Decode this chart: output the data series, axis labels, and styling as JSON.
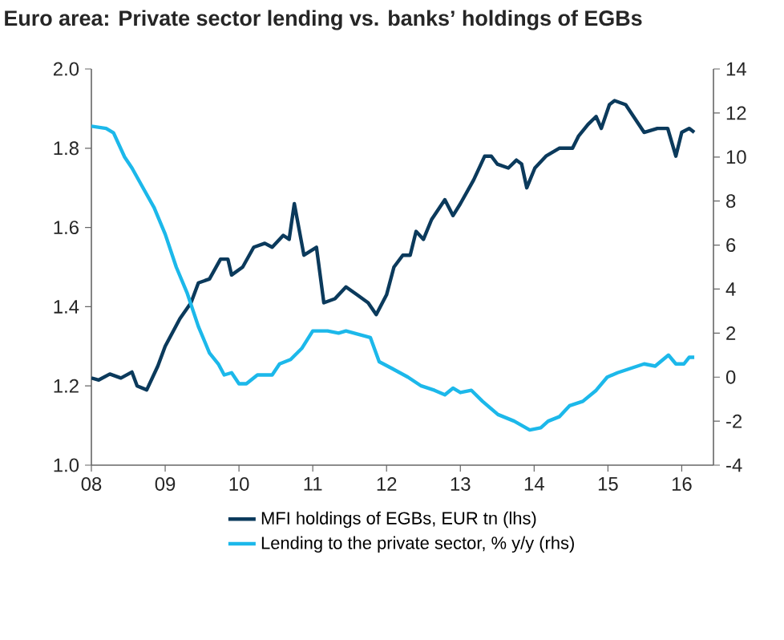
{
  "chart_data": {
    "type": "line",
    "title": "Euro area: Private sector lending vs. banks’ holdings of EGBs",
    "xlim": [
      2008,
      2016.43
    ],
    "xticks": [
      {
        "value": 2008,
        "label": "08"
      },
      {
        "value": 2009,
        "label": "09"
      },
      {
        "value": 2010,
        "label": "10"
      },
      {
        "value": 2011,
        "label": "11"
      },
      {
        "value": 2012,
        "label": "12"
      },
      {
        "value": 2013,
        "label": "13"
      },
      {
        "value": 2014,
        "label": "14"
      },
      {
        "value": 2015,
        "label": "15"
      },
      {
        "value": 2016,
        "label": "16"
      }
    ],
    "ylim": [
      1.0,
      2.0
    ],
    "yticks": [
      {
        "value": 1.0,
        "label": "1.0"
      },
      {
        "value": 1.2,
        "label": "1.2"
      },
      {
        "value": 1.4,
        "label": "1.4"
      },
      {
        "value": 1.6,
        "label": "1.6"
      },
      {
        "value": 1.8,
        "label": "1.8"
      },
      {
        "value": 2.0,
        "label": "2.0"
      }
    ],
    "y2lim": [
      -4,
      14
    ],
    "y2ticks": [
      -4,
      -2,
      0,
      2,
      4,
      6,
      8,
      10,
      12,
      14
    ],
    "grid": false,
    "legend": "bottom",
    "series": [
      {
        "name": "MFI holdings of EGBs, EUR tn (lhs)",
        "color": "#0b3a5c",
        "x": [
          2008.0,
          2008.1,
          2008.25,
          2008.4,
          2008.55,
          2008.62,
          2008.75,
          2008.9,
          2009.0,
          2009.2,
          2009.35,
          2009.45,
          2009.6,
          2009.75,
          2009.85,
          2009.9,
          2010.05,
          2010.2,
          2010.35,
          2010.45,
          2010.6,
          2010.68,
          2010.75,
          2010.88,
          2011.05,
          2011.15,
          2011.3,
          2011.45,
          2011.6,
          2011.75,
          2011.86,
          2012.0,
          2012.1,
          2012.22,
          2012.32,
          2012.4,
          2012.5,
          2012.61,
          2012.79,
          2012.9,
          2013.0,
          2013.18,
          2013.33,
          2013.42,
          2013.5,
          2013.65,
          2013.76,
          2013.83,
          2013.9,
          2014.01,
          2014.16,
          2014.34,
          2014.52,
          2014.6,
          2014.73,
          2014.84,
          2014.91,
          2015.02,
          2015.09,
          2015.24,
          2015.49,
          2015.67,
          2015.81,
          2015.92,
          2016.0,
          2016.1,
          2016.17
        ],
        "values": [
          1.22,
          1.215,
          1.23,
          1.22,
          1.235,
          1.2,
          1.19,
          1.25,
          1.3,
          1.37,
          1.41,
          1.46,
          1.47,
          1.52,
          1.52,
          1.48,
          1.5,
          1.55,
          1.56,
          1.55,
          1.58,
          1.57,
          1.66,
          1.53,
          1.55,
          1.41,
          1.42,
          1.45,
          1.43,
          1.41,
          1.38,
          1.43,
          1.5,
          1.53,
          1.53,
          1.59,
          1.57,
          1.62,
          1.67,
          1.63,
          1.66,
          1.72,
          1.78,
          1.78,
          1.76,
          1.75,
          1.77,
          1.76,
          1.7,
          1.75,
          1.78,
          1.8,
          1.8,
          1.83,
          1.86,
          1.88,
          1.85,
          1.91,
          1.92,
          1.91,
          1.84,
          1.85,
          1.85,
          1.78,
          1.84,
          1.85,
          1.84
        ]
      },
      {
        "name": "Lending to the private sector, % y/y (rhs)",
        "color": "#1cb8ea",
        "axis": "y2",
        "x": [
          2008.0,
          2008.2,
          2008.3,
          2008.45,
          2008.55,
          2008.7,
          2008.85,
          2009.0,
          2009.15,
          2009.3,
          2009.45,
          2009.6,
          2009.72,
          2009.8,
          2009.9,
          2010.0,
          2010.1,
          2010.25,
          2010.45,
          2010.55,
          2010.7,
          2010.85,
          2011.0,
          2011.2,
          2011.35,
          2011.45,
          2011.78,
          2011.9,
          2012.07,
          2012.29,
          2012.47,
          2012.65,
          2012.79,
          2012.9,
          2013.0,
          2013.15,
          2013.3,
          2013.51,
          2013.73,
          2013.94,
          2014.09,
          2014.19,
          2014.34,
          2014.48,
          2014.66,
          2014.84,
          2014.99,
          2015.13,
          2015.31,
          2015.49,
          2015.64,
          2015.82,
          2015.92,
          2016.03,
          2016.1,
          2016.17
        ],
        "values": [
          11.4,
          11.3,
          11.1,
          10.0,
          9.5,
          8.6,
          7.7,
          6.5,
          5.0,
          3.8,
          2.3,
          1.1,
          0.6,
          0.1,
          0.2,
          -0.3,
          -0.3,
          0.1,
          0.1,
          0.6,
          0.8,
          1.3,
          2.1,
          2.1,
          2.0,
          2.1,
          1.8,
          0.7,
          0.4,
          0.0,
          -0.4,
          -0.6,
          -0.8,
          -0.5,
          -0.7,
          -0.6,
          -1.1,
          -1.7,
          -2.0,
          -2.4,
          -2.3,
          -2.0,
          -1.8,
          -1.3,
          -1.1,
          -0.6,
          0.0,
          0.2,
          0.4,
          0.6,
          0.5,
          1.0,
          0.6,
          0.6,
          0.9,
          0.9
        ]
      }
    ]
  }
}
